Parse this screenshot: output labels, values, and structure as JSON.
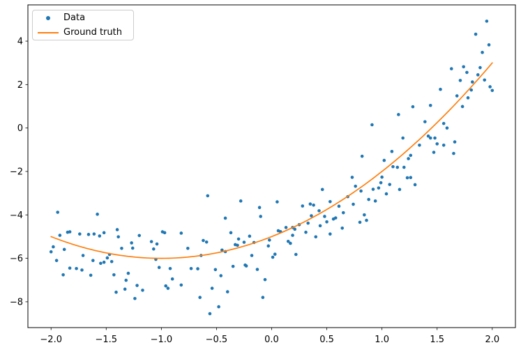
{
  "figure": {
    "legend": {
      "items": [
        {
          "label": "Data",
          "type": "marker",
          "color": "#1f77b4"
        },
        {
          "label": "Ground truth",
          "type": "line",
          "color": "#ff7f0e"
        }
      ]
    }
  },
  "chart_data": {
    "type": "scatter",
    "title": "",
    "xlabel": "",
    "ylabel": "",
    "grid": false,
    "legend_position": "upper left",
    "background_color": "#ffffff",
    "spine_color": "#000000",
    "xlim": [
      -2.21,
      2.21
    ],
    "ylim": [
      -9.19,
      5.67
    ],
    "x_ticks": [
      -2.0,
      -1.5,
      -1.0,
      -0.5,
      0.0,
      0.5,
      1.0,
      1.5,
      2.0
    ],
    "x_tick_labels": [
      "−2.0",
      "−1.5",
      "−1.0",
      "−0.5",
      "0.0",
      "0.5",
      "1.0",
      "1.5",
      "2.0"
    ],
    "y_ticks": [
      -8,
      -6,
      -4,
      -2,
      0,
      2,
      4
    ],
    "y_tick_labels": [
      "−8",
      "−6",
      "−4",
      "−2",
      "0",
      "2",
      "4"
    ],
    "series": [
      {
        "name": "Data",
        "type": "scatter",
        "color": "#1f77b4",
        "marker_radius": 2.3,
        "points": [
          [
            -1.94,
            -3.88
          ],
          [
            -1.58,
            -3.97
          ],
          [
            -1.92,
            -4.94
          ],
          [
            -1.85,
            -4.8
          ],
          [
            -1.83,
            -4.78
          ],
          [
            -1.98,
            -5.47
          ],
          [
            -2.0,
            -5.7
          ],
          [
            -1.95,
            -6.1
          ],
          [
            -1.88,
            -5.59
          ],
          [
            -1.74,
            -4.88
          ],
          [
            -1.66,
            -4.9
          ],
          [
            -1.61,
            -4.88
          ],
          [
            -1.56,
            -4.97
          ],
          [
            -1.52,
            -4.82
          ],
          [
            -1.4,
            -4.68
          ],
          [
            -1.39,
            -5.01
          ],
          [
            -1.36,
            -5.54
          ],
          [
            -1.27,
            -5.29
          ],
          [
            -1.26,
            -5.53
          ],
          [
            -1.2,
            -4.95
          ],
          [
            -1.09,
            -5.23
          ],
          [
            -1.07,
            -5.57
          ],
          [
            -1.04,
            -5.34
          ],
          [
            -1.05,
            -6.05
          ],
          [
            -0.99,
            -4.78
          ],
          [
            -0.97,
            -4.82
          ],
          [
            -0.82,
            -4.84
          ],
          [
            -0.76,
            -5.54
          ],
          [
            -0.73,
            -6.47
          ],
          [
            -1.89,
            -6.76
          ],
          [
            -1.83,
            -6.45
          ],
          [
            -1.77,
            -6.47
          ],
          [
            -1.72,
            -6.54
          ],
          [
            -1.64,
            -6.78
          ],
          [
            -1.71,
            -5.87
          ],
          [
            -1.62,
            -6.1
          ],
          [
            -1.55,
            -6.23
          ],
          [
            -1.52,
            -6.18
          ],
          [
            -1.49,
            -5.98
          ],
          [
            -1.45,
            -6.15
          ],
          [
            -1.47,
            -5.82
          ],
          [
            -1.43,
            -6.76
          ],
          [
            -1.32,
            -7.01
          ],
          [
            -1.3,
            -6.69
          ],
          [
            -1.41,
            -7.56
          ],
          [
            -1.33,
            -7.42
          ],
          [
            -1.24,
            -7.85
          ],
          [
            -1.22,
            -7.25
          ],
          [
            -1.17,
            -7.47
          ],
          [
            -0.96,
            -7.27
          ],
          [
            -0.94,
            -7.38
          ],
          [
            -1.02,
            -6.42
          ],
          [
            -0.92,
            -6.47
          ],
          [
            -0.9,
            -6.95
          ],
          [
            -0.82,
            -7.23
          ],
          [
            -0.58,
            -3.12
          ],
          [
            -0.28,
            -3.36
          ],
          [
            -0.11,
            -3.66
          ],
          [
            -0.1,
            -4.07
          ],
          [
            -0.42,
            -4.15
          ],
          [
            0.05,
            -3.4
          ],
          [
            -0.37,
            -4.82
          ],
          [
            -0.64,
            -5.87
          ],
          [
            -0.62,
            -5.18
          ],
          [
            -0.59,
            -5.25
          ],
          [
            -0.67,
            -6.48
          ],
          [
            -0.65,
            -7.8
          ],
          [
            -0.54,
            -7.38
          ],
          [
            -0.56,
            -8.55
          ],
          [
            -0.51,
            -6.52
          ],
          [
            -0.48,
            -8.23
          ],
          [
            -0.46,
            -6.8
          ],
          [
            -0.45,
            -5.62
          ],
          [
            -0.42,
            -5.69
          ],
          [
            -0.4,
            -7.54
          ],
          [
            -0.35,
            -6.37
          ],
          [
            -0.33,
            -5.37
          ],
          [
            -0.31,
            -5.4
          ],
          [
            -0.3,
            -5.11
          ],
          [
            -0.25,
            -5.26
          ],
          [
            -0.24,
            -6.31
          ],
          [
            -0.23,
            -6.35
          ],
          [
            -0.2,
            -4.98
          ],
          [
            -0.18,
            -5.87
          ],
          [
            -0.16,
            -5.27
          ],
          [
            -0.13,
            -6.51
          ],
          [
            -0.08,
            -7.8
          ],
          [
            -0.06,
            -6.98
          ],
          [
            -0.03,
            -5.43
          ],
          [
            -0.02,
            -5.16
          ],
          [
            0.01,
            -5.95
          ],
          [
            0.03,
            -5.81
          ],
          [
            0.08,
            -4.77
          ],
          [
            0.06,
            -4.73
          ],
          [
            0.13,
            -4.58
          ],
          [
            0.15,
            -5.22
          ],
          [
            0.17,
            -5.31
          ],
          [
            0.19,
            -4.58
          ],
          [
            0.21,
            -4.66
          ],
          [
            0.19,
            -4.94
          ],
          [
            0.22,
            -5.82
          ],
          [
            0.25,
            -4.45
          ],
          [
            0.28,
            -3.59
          ],
          [
            0.31,
            -4.8
          ],
          [
            0.33,
            -4.38
          ],
          [
            0.35,
            -3.5
          ],
          [
            0.38,
            -3.55
          ],
          [
            0.36,
            -4.04
          ],
          [
            0.4,
            -5.01
          ],
          [
            0.43,
            -3.81
          ],
          [
            0.44,
            -4.5
          ],
          [
            0.46,
            -2.83
          ],
          [
            0.48,
            -4.07
          ],
          [
            0.5,
            -4.32
          ],
          [
            0.53,
            -4.88
          ],
          [
            0.53,
            -3.39
          ],
          [
            0.56,
            -4.19
          ],
          [
            0.58,
            -4.14
          ],
          [
            0.61,
            -3.6
          ],
          [
            0.64,
            -4.61
          ],
          [
            0.65,
            -3.9
          ],
          [
            0.69,
            -3.16
          ],
          [
            0.73,
            -2.27
          ],
          [
            0.74,
            -3.51
          ],
          [
            0.76,
            -2.68
          ],
          [
            0.8,
            -4.34
          ],
          [
            0.81,
            -2.9
          ],
          [
            0.84,
            -4.0
          ],
          [
            0.86,
            -4.25
          ],
          [
            0.88,
            -3.29
          ],
          [
            0.92,
            -2.82
          ],
          [
            0.94,
            -3.36
          ],
          [
            0.97,
            -2.76
          ],
          [
            0.99,
            -2.52
          ],
          [
            1.0,
            -2.26
          ],
          [
            1.04,
            -3.03
          ],
          [
            1.07,
            -2.6
          ],
          [
            1.1,
            -1.78
          ],
          [
            1.14,
            -1.81
          ],
          [
            1.16,
            -2.83
          ],
          [
            1.2,
            -1.81
          ],
          [
            1.23,
            -2.29
          ],
          [
            1.26,
            -2.28
          ],
          [
            1.3,
            -2.61
          ],
          [
            0.82,
            -1.3
          ],
          [
            0.91,
            0.15
          ],
          [
            1.02,
            -1.49
          ],
          [
            1.09,
            -1.08
          ],
          [
            1.15,
            0.62
          ],
          [
            1.19,
            -0.46
          ],
          [
            1.24,
            -1.41
          ],
          [
            1.26,
            -1.26
          ],
          [
            1.28,
            0.98
          ],
          [
            1.34,
            -0.79
          ],
          [
            1.39,
            0.29
          ],
          [
            1.42,
            -0.37
          ],
          [
            1.44,
            -0.46
          ],
          [
            1.44,
            1.04
          ],
          [
            1.47,
            -1.12
          ],
          [
            1.48,
            -0.46
          ],
          [
            1.5,
            -0.73
          ],
          [
            1.53,
            1.78
          ],
          [
            1.56,
            0.21
          ],
          [
            1.56,
            -0.79
          ],
          [
            1.59,
            0.0
          ],
          [
            1.63,
            2.73
          ],
          [
            1.65,
            -1.17
          ],
          [
            1.66,
            -0.64
          ],
          [
            1.68,
            1.48
          ],
          [
            1.71,
            2.19
          ],
          [
            1.73,
            0.99
          ],
          [
            1.74,
            2.82
          ],
          [
            1.77,
            2.56
          ],
          [
            1.78,
            1.39
          ],
          [
            1.81,
            1.75
          ],
          [
            1.82,
            2.12
          ],
          [
            1.85,
            4.32
          ],
          [
            1.87,
            2.45
          ],
          [
            1.89,
            2.78
          ],
          [
            1.91,
            3.48
          ],
          [
            1.93,
            2.21
          ],
          [
            1.95,
            4.92
          ],
          [
            1.97,
            3.83
          ],
          [
            1.98,
            1.9
          ],
          [
            2.0,
            1.73
          ]
        ]
      },
      {
        "name": "Ground truth",
        "type": "line",
        "color": "#ff7f0e",
        "line_width": 1.7,
        "function": "y = x^2 + 2x − 5",
        "poly_coeffs": [
          1,
          2,
          -5
        ],
        "x_domain": [
          -2,
          2
        ]
      }
    ]
  }
}
